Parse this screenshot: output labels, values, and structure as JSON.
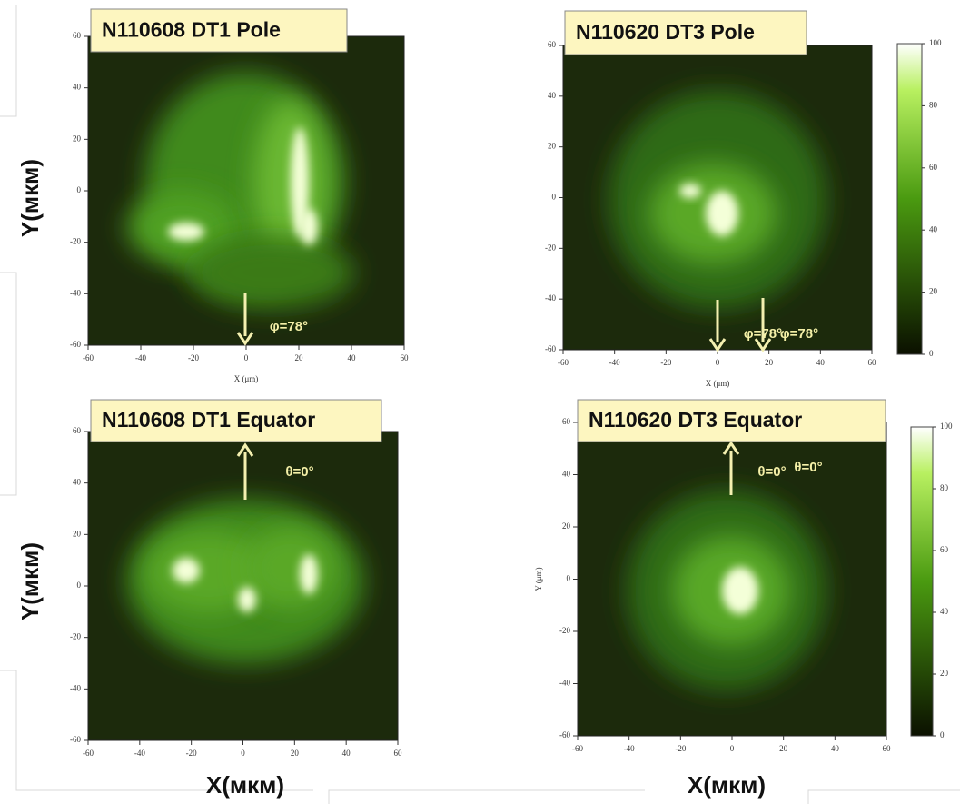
{
  "panels": [
    {
      "title": "N110608 DT1  Pole",
      "x_ticks": [
        -60,
        -40,
        -20,
        0,
        20,
        40,
        60
      ],
      "y_ticks": [
        60,
        40,
        20,
        0,
        -20,
        -40,
        -60
      ],
      "x_axis_label": "X (μm)",
      "annotations": [
        "φ=78°"
      ]
    },
    {
      "title": "N110620 DT3  Pole",
      "x_ticks": [
        -60,
        -40,
        -20,
        0,
        20,
        40,
        60
      ],
      "y_ticks": [
        60,
        40,
        20,
        0,
        -20,
        -40,
        -60
      ],
      "x_axis_label": "X (μm)",
      "annotations": [
        "φ=78°",
        "φ=78°"
      ]
    },
    {
      "title": "N110608 DT1  Equator",
      "x_ticks": [
        -60,
        -40,
        -20,
        0,
        20,
        40,
        60
      ],
      "y_ticks": [
        60,
        40,
        20,
        0,
        -20,
        -40,
        -60
      ],
      "annotations": [
        "θ=0°"
      ]
    },
    {
      "title": "N110620 DT3  Equator",
      "x_ticks": [
        -60,
        -40,
        -20,
        0,
        20,
        40,
        60
      ],
      "y_ticks": [
        60,
        40,
        20,
        0,
        -20,
        -40,
        -60
      ],
      "y_axis_label": "Y (μm)",
      "annotations": [
        "θ=0°",
        "θ=0°"
      ]
    }
  ],
  "colorbars": [
    {
      "ticks": [
        100,
        80,
        60,
        40,
        20,
        0
      ]
    },
    {
      "ticks": [
        100,
        80,
        60,
        40,
        20,
        0
      ]
    }
  ],
  "labels": {
    "y_top": "Y(мкм)",
    "y_bottom": "Y(мкм)",
    "x_left": "X(мкм)",
    "x_right": "X(мкм)"
  }
}
